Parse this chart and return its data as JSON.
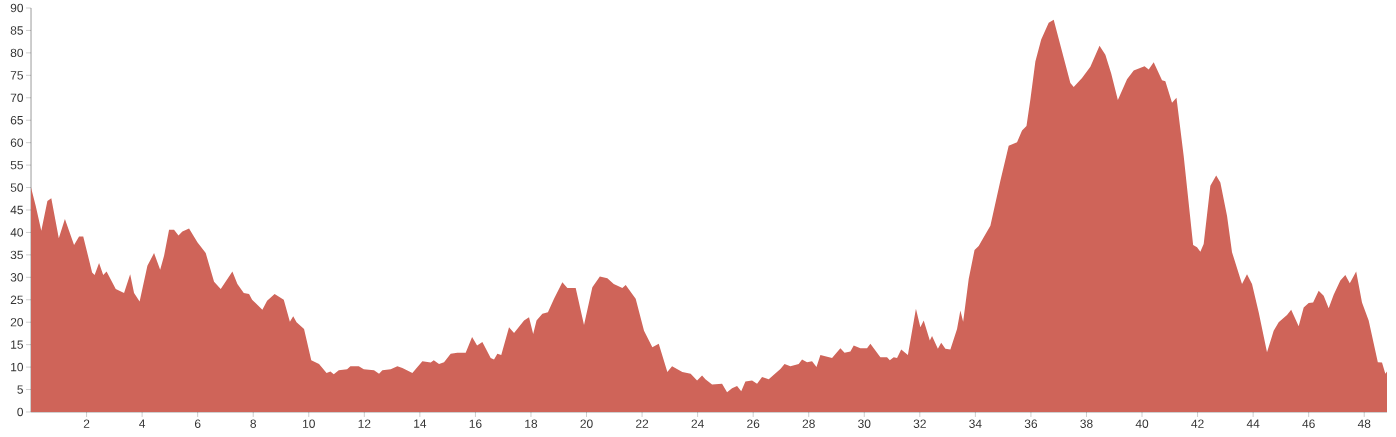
{
  "chart_data": {
    "type": "area",
    "color": "#cf6459",
    "x": [
      0,
      0.17,
      0.37,
      0.59,
      0.73,
      1.0,
      1.22,
      1.55,
      1.73,
      1.88,
      2.2,
      2.29,
      2.45,
      2.6,
      2.72,
      3.05,
      3.35,
      3.57,
      3.71,
      3.91,
      4.19,
      4.43,
      4.65,
      4.79,
      4.97,
      5.15,
      5.31,
      5.45,
      5.69,
      5.99,
      6.29,
      6.59,
      6.83,
      7.25,
      7.43,
      7.66,
      7.85,
      7.96,
      8.33,
      8.5,
      8.77,
      9.1,
      9.32,
      9.44,
      9.56,
      9.83,
      10.09,
      10.37,
      10.64,
      10.78,
      10.9,
      11.08,
      11.38,
      11.5,
      11.8,
      11.98,
      12.35,
      12.53,
      12.65,
      12.95,
      13.19,
      13.37,
      13.73,
      14.09,
      14.39,
      14.5,
      14.69,
      14.87,
      15.11,
      15.35,
      15.65,
      15.88,
      16.06,
      16.25,
      16.55,
      16.67,
      16.79,
      16.93,
      17.21,
      17.39,
      17.75,
      17.93,
      18.08,
      18.2,
      18.41,
      18.61,
      18.83,
      19.13,
      19.31,
      19.61,
      19.91,
      20.21,
      20.48,
      20.75,
      20.98,
      21.29,
      21.41,
      21.77,
      22.07,
      22.37,
      22.6,
      22.91,
      23.08,
      23.45,
      23.75,
      23.98,
      24.16,
      24.28,
      24.52,
      24.88,
      25.06,
      25.24,
      25.42,
      25.57,
      25.72,
      25.96,
      26.14,
      26.32,
      26.56,
      26.98,
      27.13,
      27.34,
      27.64,
      27.76,
      27.94,
      28.12,
      28.28,
      28.42,
      28.84,
      29.14,
      29.29,
      29.5,
      29.62,
      29.86,
      30.1,
      30.22,
      30.58,
      30.82,
      30.92,
      31.06,
      31.18,
      31.33,
      31.57,
      31.86,
      32.02,
      32.14,
      32.36,
      32.44,
      32.65,
      32.77,
      32.92,
      33.1,
      33.34,
      33.46,
      33.56,
      33.76,
      33.97,
      34.12,
      34.3,
      34.54,
      34.9,
      35.2,
      35.5,
      35.68,
      35.84,
      35.98,
      36.16,
      36.37,
      36.64,
      36.82,
      37.04,
      37.42,
      37.54,
      37.84,
      38.14,
      38.47,
      38.68,
      38.89,
      39.13,
      39.46,
      39.7,
      40.09,
      40.24,
      40.42,
      40.72,
      40.84,
      41.08,
      41.24,
      41.5,
      41.84,
      41.98,
      42.1,
      42.22,
      42.46,
      42.67,
      42.82,
      43.06,
      43.24,
      43.6,
      43.78,
      43.96,
      44.2,
      44.5,
      44.74,
      44.92,
      45.22,
      45.37,
      45.64,
      45.82,
      46.0,
      46.16,
      46.36,
      46.54,
      46.72,
      46.9,
      47.14,
      47.32,
      47.48,
      47.71,
      47.92,
      48.16,
      48.49,
      48.64,
      48.76,
      48.82
    ],
    "values": [
      50,
      45.9,
      40.4,
      47,
      47.6,
      38.7,
      43,
      37.2,
      39.1,
      39.1,
      31.1,
      30.5,
      33.2,
      30.5,
      31.3,
      27.4,
      26.5,
      30.7,
      26.5,
      24.6,
      32.6,
      35.4,
      31.7,
      34.8,
      40.6,
      40.6,
      39.3,
      40.2,
      40.9,
      37.8,
      35.4,
      29,
      27.4,
      31.3,
      28.5,
      26.5,
      26.3,
      25,
      22.8,
      24.8,
      26.3,
      25,
      20.1,
      21.3,
      20,
      18.5,
      11.5,
      10.7,
      8.7,
      9,
      8.4,
      9.3,
      9.5,
      10.2,
      10.2,
      9.5,
      9.3,
      8.5,
      9.3,
      9.5,
      10.2,
      9.8,
      8.7,
      11.3,
      11,
      11.5,
      10.7,
      11.1,
      13,
      13.2,
      13.2,
      16.7,
      14.8,
      15.6,
      12,
      11.7,
      13,
      12.7,
      18.9,
      17.6,
      20.4,
      21.1,
      17.4,
      20.4,
      21.9,
      22.2,
      25.2,
      28.9,
      27.6,
      27.6,
      19.4,
      27.8,
      30.2,
      29.8,
      28.5,
      27.6,
      28.3,
      25.2,
      18.1,
      14.4,
      15.2,
      8.9,
      10.2,
      8.9,
      8.5,
      7,
      8.1,
      7.3,
      6.1,
      6.3,
      4.4,
      5.3,
      5.8,
      4.6,
      6.8,
      7,
      6.3,
      7.8,
      7.3,
      9.6,
      10.7,
      10.2,
      10.7,
      11.7,
      11.1,
      11.3,
      10,
      12.7,
      12,
      14.2,
      13.2,
      13.5,
      14.8,
      14.2,
      14.2,
      15.2,
      12.2,
      12.2,
      11.5,
      12.2,
      12,
      13.9,
      12.7,
      23,
      18.9,
      20.4,
      15.9,
      16.9,
      14.1,
      15.4,
      14.1,
      13.9,
      18.5,
      22.6,
      20.1,
      29.6,
      36.1,
      37,
      38.9,
      41.5,
      51.5,
      59.3,
      60.1,
      62.7,
      63.7,
      69.6,
      78.1,
      83,
      86.7,
      87.4,
      82.2,
      73.3,
      72.4,
      74.4,
      76.9,
      81.6,
      79.6,
      75.4,
      69.5,
      74.1,
      76.1,
      77,
      76.3,
      77.9,
      73.9,
      73.7,
      68.9,
      70,
      57,
      37.2,
      36.7,
      35.7,
      37.4,
      50.4,
      52.7,
      51.1,
      43.7,
      35.6,
      28.5,
      30.7,
      28.5,
      22.2,
      13.3,
      18.1,
      20,
      21.6,
      22.8,
      19.1,
      23.3,
      24.3,
      24.4,
      27,
      25.9,
      23.1,
      26.1,
      29.3,
      30.5,
      28.7,
      31.3,
      24.4,
      20.4,
      11.1,
      11,
      8.5,
      9
    ],
    "xlim": [
      0,
      48.82
    ],
    "ylim": [
      0,
      90
    ],
    "xticks": [
      2,
      4,
      6,
      8,
      10,
      12,
      14,
      16,
      18,
      20,
      22,
      24,
      26,
      28,
      30,
      32,
      34,
      36,
      38,
      40,
      42,
      44,
      46,
      48
    ],
    "yticks": [
      0,
      5,
      10,
      15,
      20,
      25,
      30,
      35,
      40,
      45,
      50,
      55,
      60,
      65,
      70,
      75,
      80,
      85,
      90
    ]
  }
}
